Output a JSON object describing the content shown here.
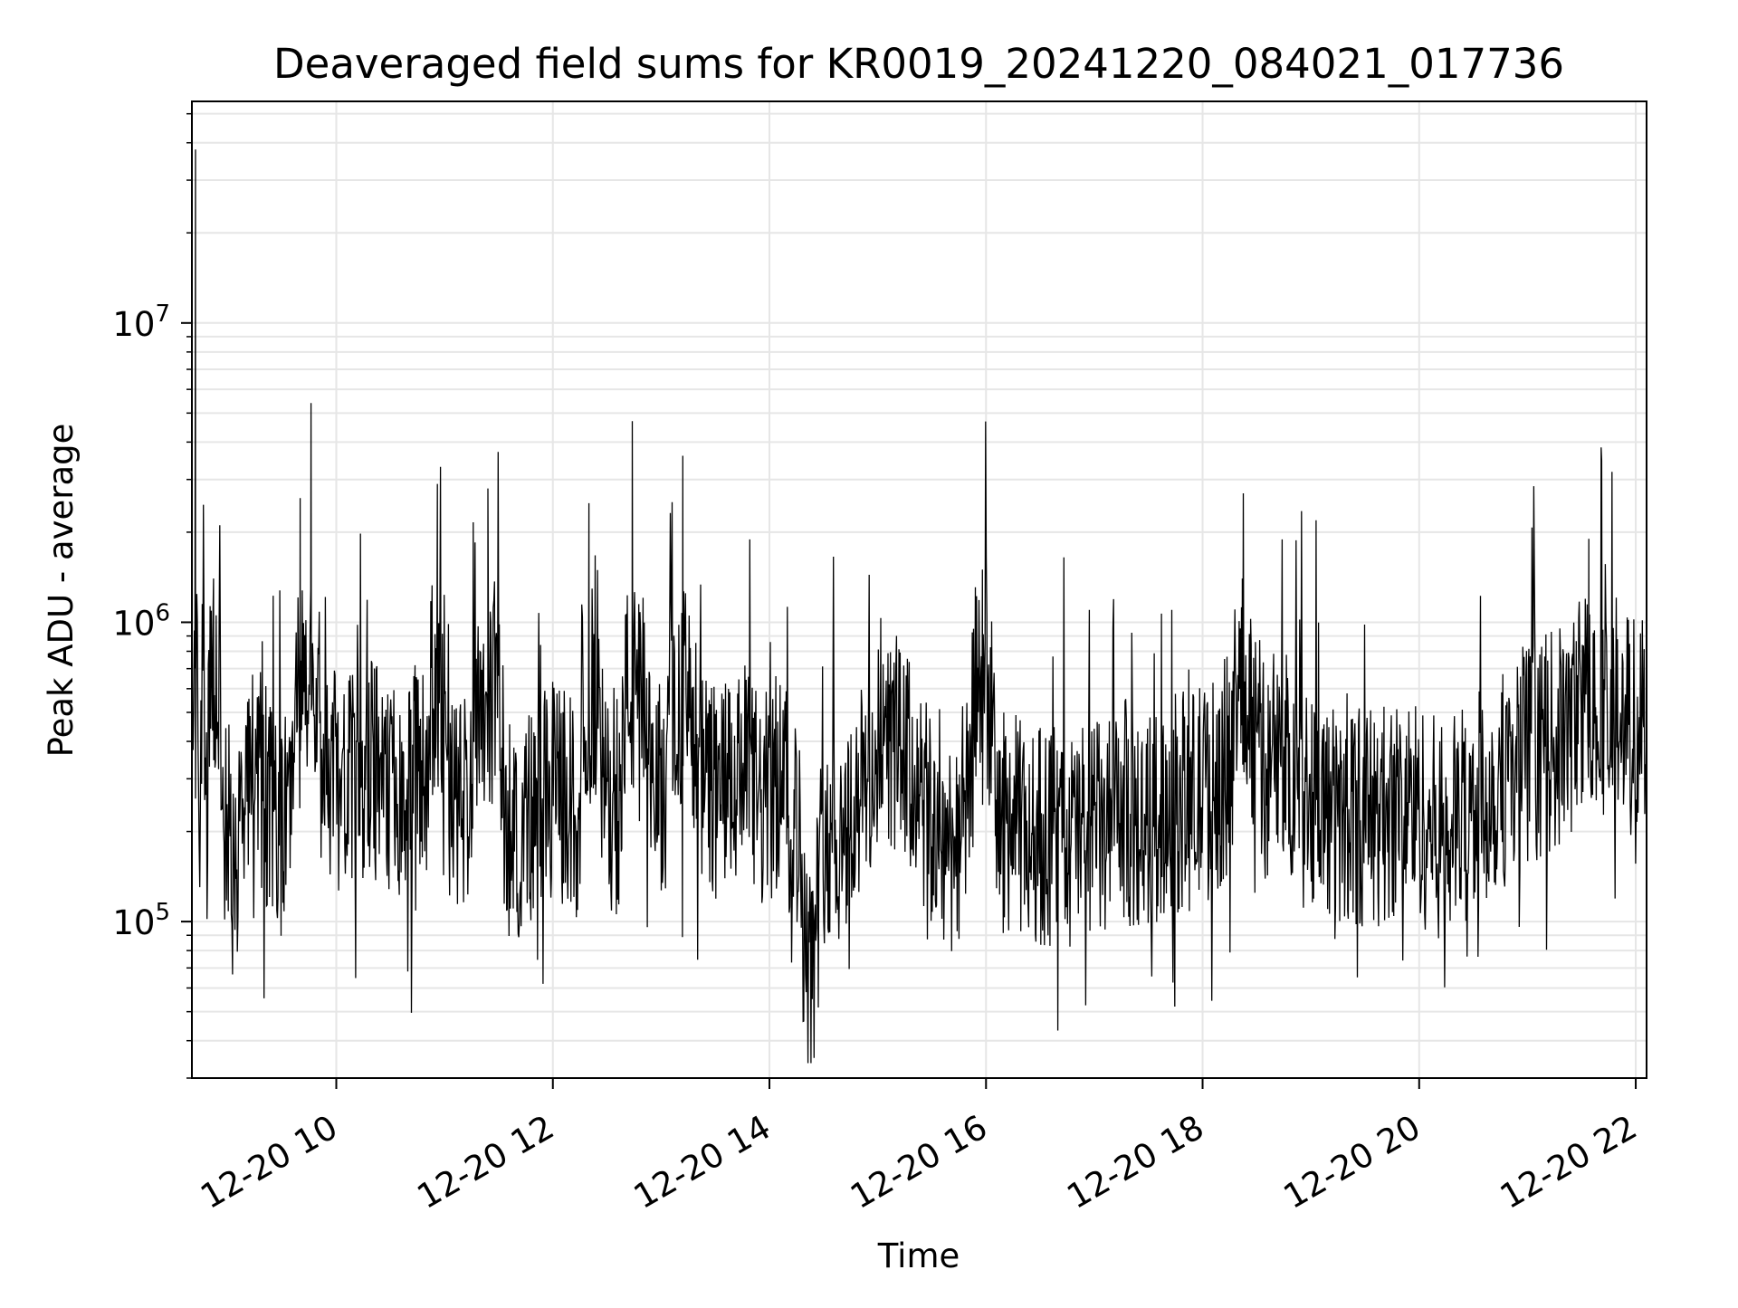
{
  "chart_data": {
    "type": "line",
    "title": "Deaveraged field sums for KR0019_20241220_084021_017736",
    "xlabel": "Time",
    "ylabel": "Peak ADU - average",
    "yscale": "log",
    "ylim": [
      30000,
      55000000
    ],
    "xlim": [
      "12-20 08:40",
      "12-20 22:06"
    ],
    "x_ticks": [
      {
        "t": "12-20 10:00",
        "label": "12-20 10"
      },
      {
        "t": "12-20 12:00",
        "label": "12-20 12"
      },
      {
        "t": "12-20 14:00",
        "label": "12-20 14"
      },
      {
        "t": "12-20 16:00",
        "label": "12-20 16"
      },
      {
        "t": "12-20 18:00",
        "label": "12-20 18"
      },
      {
        "t": "12-20 20:00",
        "label": "12-20 20"
      },
      {
        "t": "12-20 22:00",
        "label": "12-20 22"
      }
    ],
    "y_ticks": [
      {
        "v": 100000,
        "base": "10",
        "exp": "5"
      },
      {
        "v": 1000000,
        "base": "10",
        "exp": "6"
      },
      {
        "v": 10000000,
        "base": "10",
        "exp": "7"
      }
    ],
    "grid": true,
    "line_color": "#000000",
    "series": [
      {
        "x": [
          "12-20 08:40",
          "12-20 08:42",
          "12-20 08:44",
          "12-20 08:46",
          "12-20 08:48",
          "12-20 08:52",
          "12-20 08:58",
          "12-20 09:04",
          "12-20 09:10",
          "12-20 09:18",
          "12-20 09:26",
          "12-20 09:34",
          "12-20 09:40",
          "12-20 09:46",
          "12-20 09:52",
          "12-20 10:00",
          "12-20 10:10",
          "12-20 10:20",
          "12-20 10:30",
          "12-20 10:40",
          "12-20 10:50",
          "12-20 10:56",
          "12-20 11:04",
          "12-20 11:14",
          "12-20 11:24",
          "12-20 11:34",
          "12-20 11:44",
          "12-20 11:54",
          "12-20 12:04",
          "12-20 12:14",
          "12-20 12:20",
          "12-20 12:28",
          "12-20 12:38",
          "12-20 12:44",
          "12-20 12:52",
          "12-20 13:02",
          "12-20 13:12",
          "12-20 13:18",
          "12-20 13:26",
          "12-20 13:36",
          "12-20 13:46",
          "12-20 13:56",
          "12-20 14:06",
          "12-20 14:16",
          "12-20 14:22",
          "12-20 14:30",
          "12-20 14:40",
          "12-20 14:50",
          "12-20 15:00",
          "12-20 15:10",
          "12-20 15:20",
          "12-20 15:30",
          "12-20 15:40",
          "12-20 15:50",
          "12-20 15:58",
          "12-20 16:06",
          "12-20 16:16",
          "12-20 16:26",
          "12-20 16:36",
          "12-20 16:46",
          "12-20 16:56",
          "12-20 17:06",
          "12-20 17:16",
          "12-20 17:26",
          "12-20 17:36",
          "12-20 17:46",
          "12-20 17:56",
          "12-20 18:06",
          "12-20 18:16",
          "12-20 18:22",
          "12-20 18:28",
          "12-20 18:36",
          "12-20 18:46",
          "12-20 18:56",
          "12-20 19:06",
          "12-20 19:16",
          "12-20 19:26",
          "12-20 19:36",
          "12-20 19:46",
          "12-20 19:56",
          "12-20 20:06",
          "12-20 20:16",
          "12-20 20:26",
          "12-20 20:36",
          "12-20 20:46",
          "12-20 20:56",
          "12-20 21:06",
          "12-20 21:16",
          "12-20 21:26",
          "12-20 21:34",
          "12-20 21:40",
          "12-20 21:46",
          "12-20 21:52",
          "12-20 21:58",
          "12-20 22:04"
        ],
        "y": [
          1800000,
          38000000,
          200000,
          900000,
          180000,
          1400000,
          220000,
          160000,
          280000,
          300000,
          220000,
          200000,
          2600000,
          5400000,
          250000,
          300000,
          280000,
          330000,
          260000,
          300000,
          320000,
          2900000,
          240000,
          270000,
          2800000,
          200000,
          210000,
          250000,
          280000,
          220000,
          2500000,
          260000,
          240000,
          4700000,
          300000,
          270000,
          3600000,
          280000,
          290000,
          270000,
          310000,
          240000,
          300000,
          200000,
          50000,
          200000,
          190000,
          260000,
          350000,
          400000,
          300000,
          200000,
          180000,
          250000,
          1500000,
          220000,
          210000,
          190000,
          200000,
          180000,
          220000,
          190000,
          240000,
          200000,
          230000,
          250000,
          260000,
          280000,
          350000,
          1400000,
          450000,
          300000,
          350000,
          300000,
          250000,
          210000,
          230000,
          220000,
          240000,
          250000,
          210000,
          200000,
          230000,
          260000,
          300000,
          350000,
          380000,
          400000,
          450000,
          1900000,
          600000,
          420000,
          480000,
          450000,
          500000
        ]
      }
    ]
  }
}
